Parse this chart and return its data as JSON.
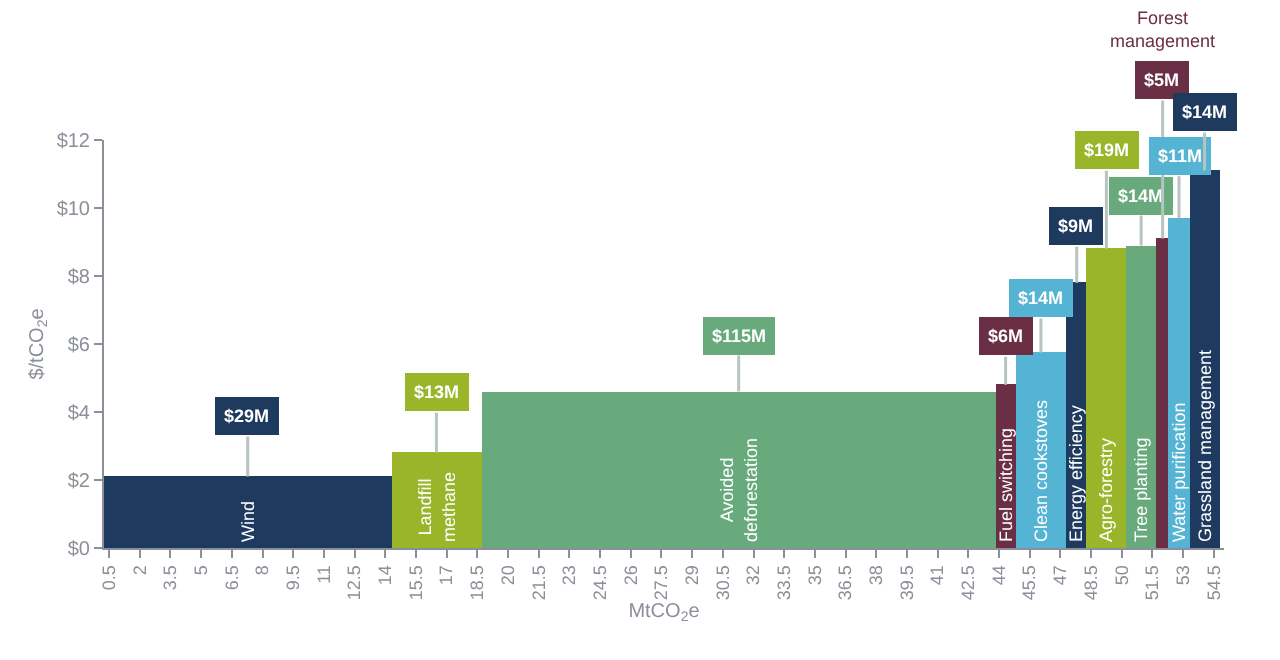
{
  "chart_data": {
    "type": "histogram",
    "xlabel": "MtCO$_{2}$e",
    "ylabel": "$/tCO$_{2}$e",
    "categories": [
      "Wind",
      "Landfill methane",
      "Avoided deforestation",
      "Fuel switching",
      "Clean cookstoves",
      "Energy efficiency",
      "Agro-forestry",
      "Tree planting",
      "Forest management",
      "Water purification",
      "Grassland management"
    ],
    "bins": [
      0.25,
      14.3,
      18.7,
      43.85,
      44.8,
      47.3,
      48.3,
      50.2,
      51.7,
      52.3,
      53.3,
      54.8
    ],
    "values": [
      2.1,
      2.8,
      4.6,
      4.8,
      5.75,
      7.8,
      8.8,
      8.9,
      9.1,
      9.7,
      11.1
    ],
    "annotations": [
      {
        "text": "$29M",
        "x": 7.275,
        "y": 2.1
      },
      {
        "text": "$13M",
        "x": 16.5,
        "y": 2.8
      },
      {
        "text": "$115M",
        "x": 31.275,
        "y": 4.6
      },
      {
        "text": "$6M",
        "x": 44.325,
        "y": 4.8
      },
      {
        "text": "$14M",
        "x": 46.05,
        "y": 5.75
      },
      {
        "text": "$9M",
        "x": 47.8,
        "y": 7.8
      },
      {
        "text": "$19M",
        "x": 49.25,
        "y": 8.8
      },
      {
        "text": "$14M",
        "x": 50.95,
        "y": 8.9
      },
      {
        "text": "$5M",
        "x": 52.0,
        "y": 9.1
      },
      {
        "text": "$11M",
        "x": 52.8,
        "y": 9.7
      },
      {
        "text": "$14M",
        "x": 54.05,
        "y": 11.1
      }
    ],
    "colors": [
      "#1f3a5f",
      "#9ab52a",
      "#68aa7c",
      "#6b2f45",
      "#55b3d3",
      "#1f3a5f",
      "#9ab52a",
      "#68aa7c",
      "#6b2f45",
      "#55b3d3",
      "#1f3a5f"
    ],
    "xlim": [
      0.25,
      55
    ],
    "xticks": [
      0.5,
      2,
      3.5,
      5,
      6.5,
      8,
      9.5,
      11,
      12.5,
      14,
      15.5,
      17,
      18.5,
      20,
      21.5,
      23,
      24.5,
      26,
      27.5,
      29,
      30.5,
      32,
      33.5,
      35,
      36.5,
      38,
      39.5,
      41,
      42.5,
      44,
      45.5,
      47,
      48.5,
      50,
      51.5,
      53,
      54.5
    ],
    "ylim": [
      0,
      12
    ],
    "yticks": [
      {
        "value": 0,
        "label": "$0"
      },
      {
        "value": 2,
        "label": "$2"
      },
      {
        "value": 4,
        "label": "$4"
      },
      {
        "value": 6,
        "label": "$6"
      },
      {
        "value": 8,
        "label": "$8"
      },
      {
        "value": 10,
        "label": "$10"
      },
      {
        "value": 12,
        "label": "$12"
      }
    ]
  }
}
